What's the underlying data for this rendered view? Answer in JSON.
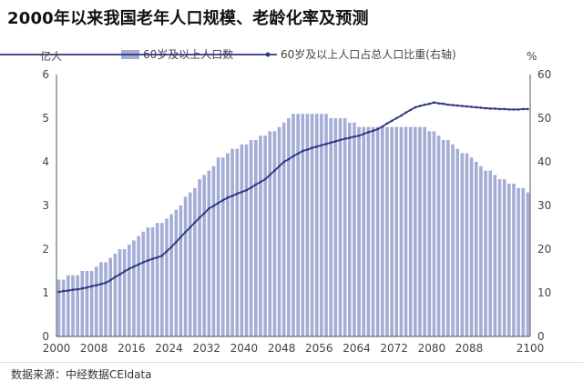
{
  "title": "2000年以来我国老年人口规模、老龄化率及预测",
  "source": "数据来源：中经数据CEIdata",
  "colors": {
    "bar": "#a3add5",
    "line": "#2d3784",
    "axis": "#555555"
  },
  "chart_data": {
    "type": "bar+line",
    "title": "2000年以来我国老年人口规模、老龄化率及预测",
    "ylabel_left": "亿人",
    "ylabel_right": "%",
    "ylim_left": [
      0,
      6
    ],
    "ylim_right": [
      0,
      60
    ],
    "yticks_left": [
      "0",
      "1",
      "2",
      "3",
      "4",
      "5",
      "6"
    ],
    "yticks_right": [
      "0",
      "10",
      "20",
      "30",
      "40",
      "50",
      "60"
    ],
    "xticks": [
      "2000",
      "2008",
      "2016",
      "2024",
      "2032",
      "2040",
      "2048",
      "2056",
      "2064",
      "2072",
      "2080",
      "2088",
      "2100"
    ],
    "xtick_years": [
      2000,
      2008,
      2016,
      2024,
      2032,
      2040,
      2048,
      2056,
      2064,
      2072,
      2080,
      2088,
      2100
    ],
    "grid": false,
    "legend_position": "top",
    "x_start": 2000,
    "x_end": 2100,
    "series": [
      {
        "name": "60岁及以上人口数",
        "type": "bar",
        "axis": "left",
        "values": [
          1.3,
          1.3,
          1.4,
          1.4,
          1.4,
          1.5,
          1.5,
          1.5,
          1.6,
          1.7,
          1.7,
          1.8,
          1.9,
          2.0,
          2.0,
          2.1,
          2.2,
          2.3,
          2.4,
          2.5,
          2.5,
          2.6,
          2.6,
          2.7,
          2.8,
          2.9,
          3.0,
          3.2,
          3.3,
          3.4,
          3.6,
          3.7,
          3.8,
          3.9,
          4.1,
          4.1,
          4.2,
          4.3,
          4.3,
          4.4,
          4.4,
          4.5,
          4.5,
          4.6,
          4.6,
          4.7,
          4.7,
          4.8,
          4.9,
          5.0,
          5.1,
          5.1,
          5.1,
          5.1,
          5.1,
          5.1,
          5.1,
          5.1,
          5.0,
          5.0,
          5.0,
          5.0,
          4.9,
          4.9,
          4.8,
          4.8,
          4.8,
          4.8,
          4.8,
          4.8,
          4.8,
          4.8,
          4.8,
          4.8,
          4.8,
          4.8,
          4.8,
          4.8,
          4.8,
          4.7,
          4.7,
          4.6,
          4.5,
          4.5,
          4.4,
          4.3,
          4.2,
          4.2,
          4.1,
          4.0,
          3.9,
          3.8,
          3.8,
          3.7,
          3.6,
          3.6,
          3.5,
          3.5,
          3.4,
          3.4,
          3.3
        ]
      },
      {
        "name": "60岁及以上人口占总人口比重(右轴)",
        "type": "line",
        "axis": "right",
        "values": [
          10.2,
          10.4,
          10.5,
          10.7,
          10.8,
          11.0,
          11.2,
          11.5,
          11.7,
          12.0,
          12.3,
          12.9,
          13.6,
          14.2,
          14.9,
          15.5,
          16.0,
          16.5,
          17.0,
          17.4,
          17.8,
          18.1,
          18.5,
          19.5,
          20.5,
          21.6,
          22.8,
          23.9,
          25.0,
          26.1,
          27.2,
          28.2,
          29.3,
          29.9,
          30.6,
          31.2,
          31.8,
          32.2,
          32.7,
          33.1,
          33.5,
          34.1,
          34.8,
          35.4,
          36.0,
          37.0,
          38.0,
          39.0,
          40.0,
          40.6,
          41.3,
          41.9,
          42.5,
          42.8,
          43.2,
          43.5,
          43.8,
          44.1,
          44.4,
          44.7,
          45.0,
          45.3,
          45.5,
          45.8,
          46.0,
          46.4,
          46.8,
          47.1,
          47.5,
          48.1,
          48.8,
          49.4,
          50.0,
          50.6,
          51.3,
          51.9,
          52.5,
          52.8,
          53.1,
          53.3,
          53.6,
          53.4,
          53.3,
          53.1,
          53.0,
          52.9,
          52.8,
          52.7,
          52.6,
          52.5,
          52.4,
          52.3,
          52.2,
          52.2,
          52.1,
          52.1,
          52.0,
          52.0,
          52.0,
          52.1,
          52.1
        ]
      }
    ]
  }
}
